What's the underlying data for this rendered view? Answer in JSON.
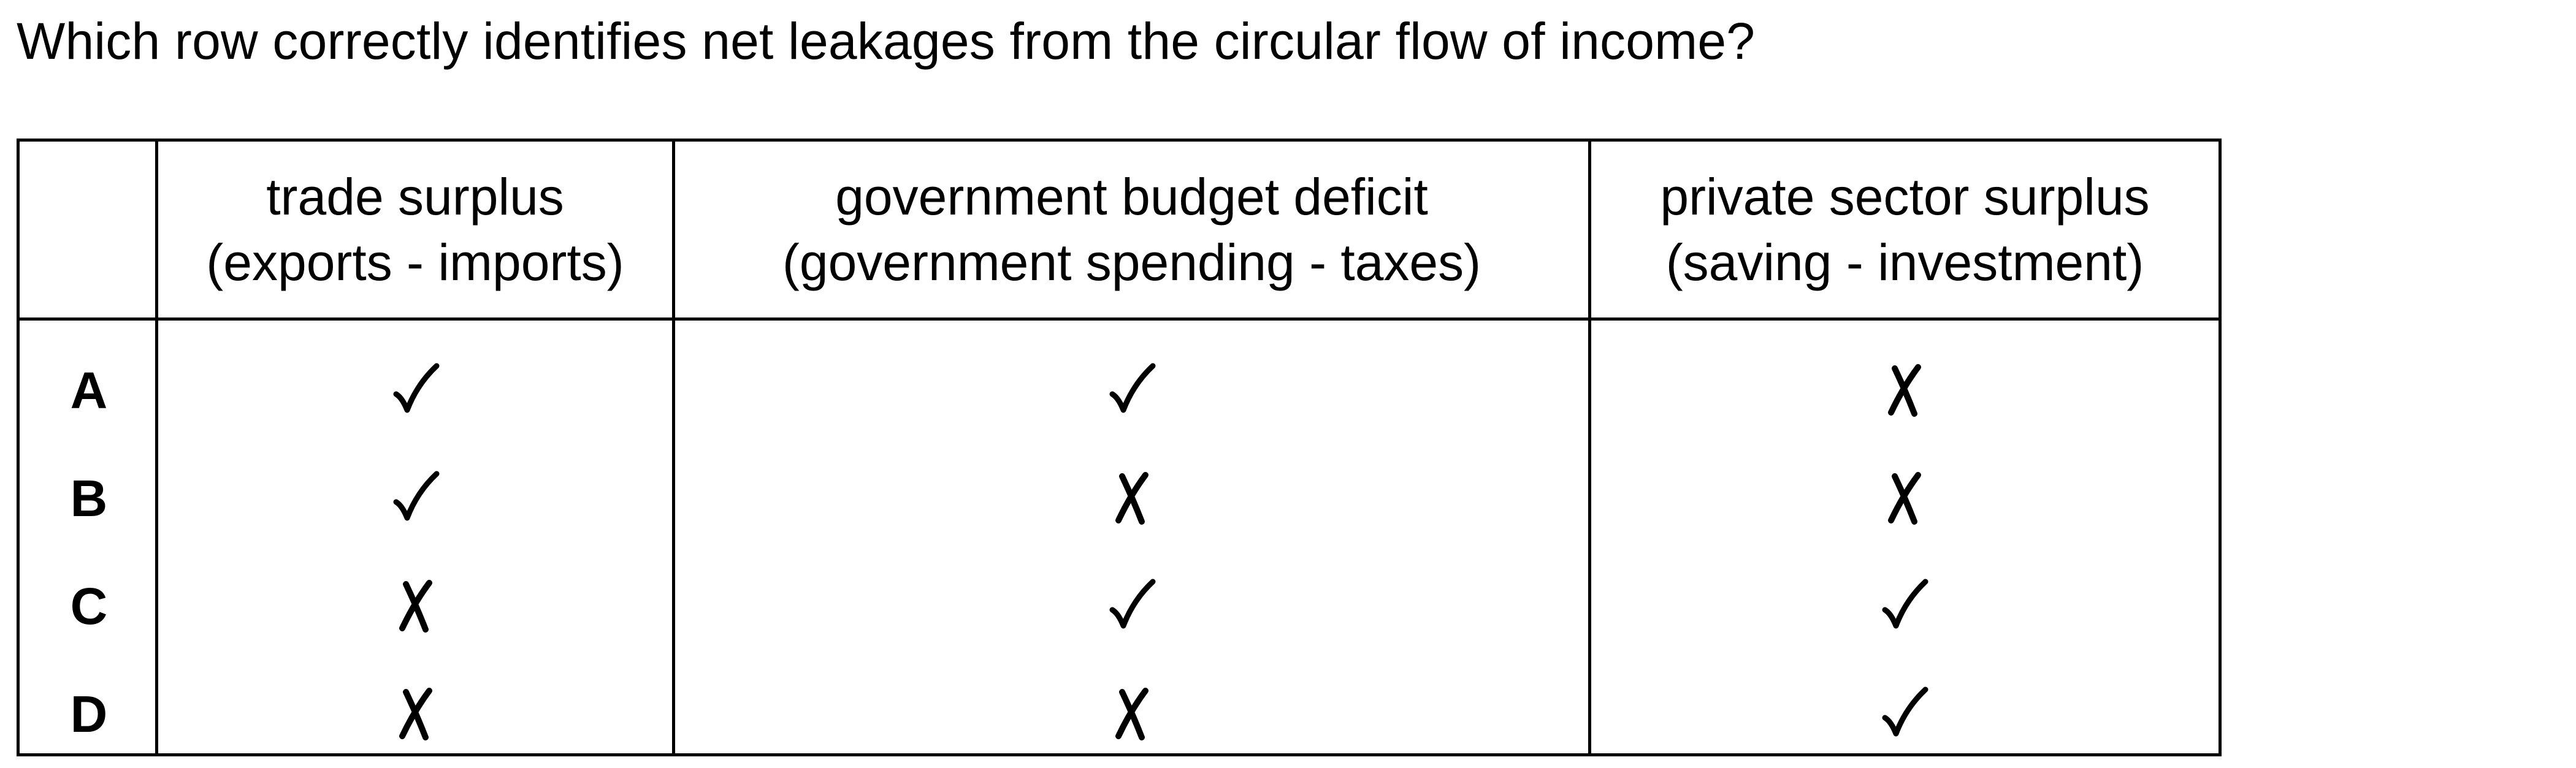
{
  "question": "Which row correctly identifies net leakages from the circular flow of income?",
  "table": {
    "headers": [
      {
        "title": "trade surplus",
        "subtitle": "(exports - imports)"
      },
      {
        "title": "government budget deficit",
        "subtitle": "(government spending - taxes)"
      },
      {
        "title": "private sector surplus",
        "subtitle": "(saving - investment)"
      }
    ],
    "rows": [
      {
        "label": "A",
        "marks": [
          "check",
          "check",
          "cross"
        ]
      },
      {
        "label": "B",
        "marks": [
          "check",
          "cross",
          "cross"
        ]
      },
      {
        "label": "C",
        "marks": [
          "cross",
          "check",
          "check"
        ]
      },
      {
        "label": "D",
        "marks": [
          "cross",
          "cross",
          "check"
        ]
      }
    ]
  }
}
